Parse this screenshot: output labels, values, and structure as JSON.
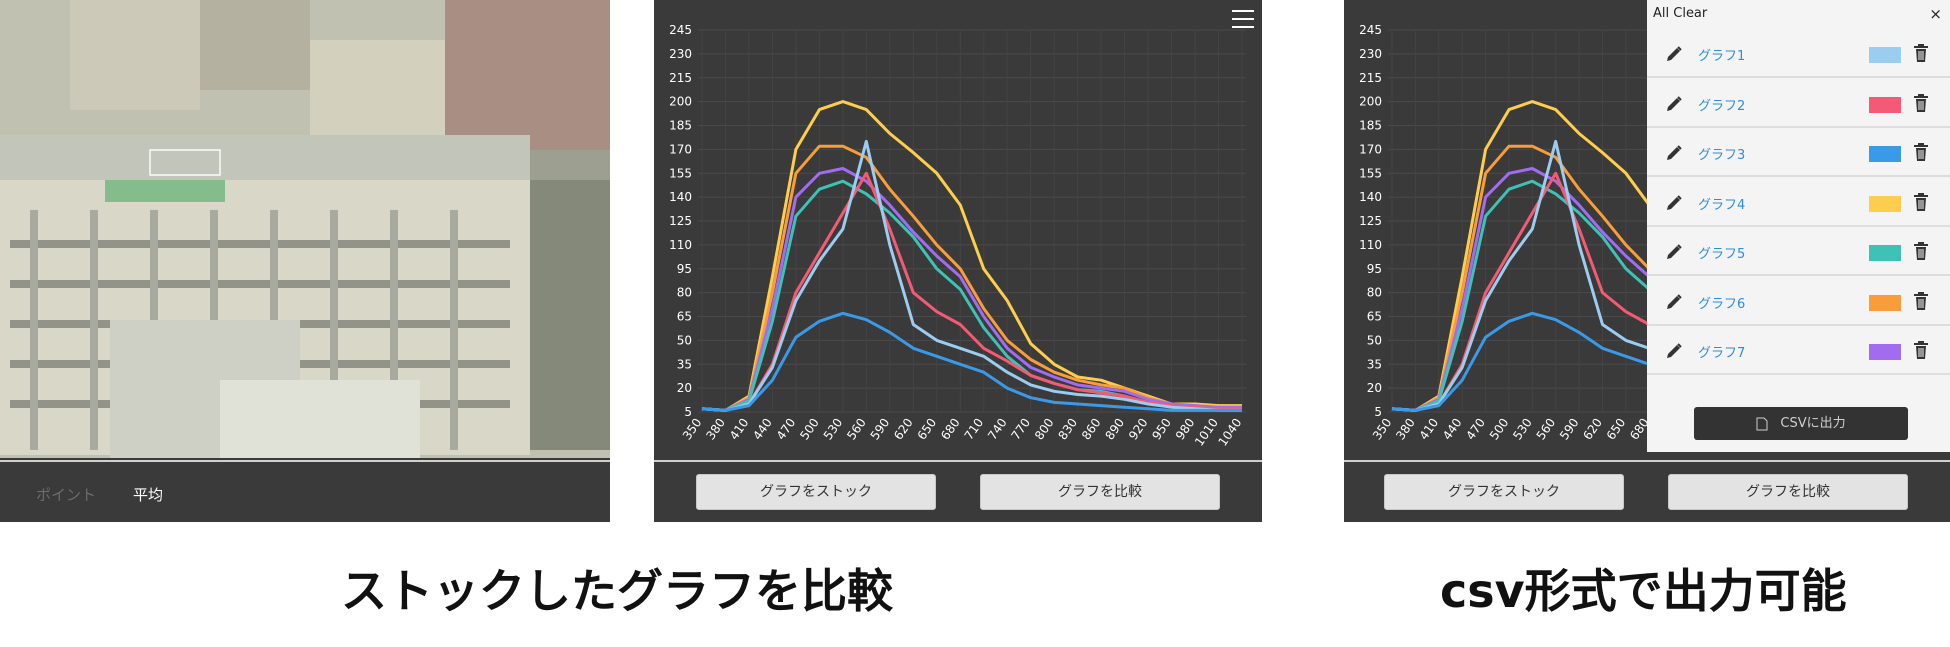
{
  "photo_panel": {
    "tabs": [
      "ポイント",
      "平均"
    ],
    "active_tab": "平均"
  },
  "chart_panel": {
    "stock_button": "グラフをストック",
    "compare_button": "グラフを比較"
  },
  "compare_panel": {
    "stock_button": "グラフをストック",
    "compare_button": "グラフを比較",
    "all_clear": "All Clear",
    "close": "×",
    "items": [
      {
        "name": "グラフ1",
        "color": "#9bcdf0"
      },
      {
        "name": "グラフ2",
        "color": "#f45a73"
      },
      {
        "name": "グラフ3",
        "color": "#3a9ae8"
      },
      {
        "name": "グラフ4",
        "color": "#fdce4e"
      },
      {
        "name": "グラフ5",
        "color": "#3fc2b6"
      },
      {
        "name": "グラフ6",
        "color": "#f99d3b"
      },
      {
        "name": "グラフ7",
        "color": "#a16cf0"
      }
    ],
    "csv_button": "CSVに出力"
  },
  "captions": {
    "left": "ストックしたグラフを比較",
    "right": "csv形式で出力可能"
  },
  "chart_data": {
    "type": "line",
    "x": [
      350,
      380,
      410,
      440,
      470,
      500,
      530,
      560,
      590,
      620,
      650,
      680,
      710,
      740,
      770,
      800,
      830,
      860,
      890,
      920,
      950,
      980,
      1010,
      1040
    ],
    "yticks": [
      5,
      20,
      35,
      50,
      65,
      80,
      95,
      110,
      125,
      140,
      155,
      170,
      185,
      200,
      215,
      230,
      245
    ],
    "ylim": [
      5,
      245
    ],
    "grid": true,
    "series": [
      {
        "color": "#fdce4e",
        "values": [
          7,
          6,
          15,
          90,
          170,
          195,
          200,
          195,
          180,
          168,
          155,
          135,
          95,
          75,
          48,
          35,
          27,
          25,
          20,
          15,
          10,
          10,
          9,
          9
        ]
      },
      {
        "color": "#f99d3b",
        "values": [
          7,
          6,
          14,
          80,
          155,
          172,
          172,
          165,
          145,
          128,
          110,
          95,
          70,
          50,
          38,
          30,
          25,
          22,
          20,
          14,
          10,
          9,
          8,
          8
        ]
      },
      {
        "color": "#a16cf0",
        "values": [
          7,
          6,
          13,
          70,
          140,
          155,
          158,
          150,
          135,
          118,
          103,
          90,
          65,
          45,
          33,
          27,
          22,
          20,
          18,
          13,
          10,
          9,
          8,
          8
        ]
      },
      {
        "color": "#3fc2b6",
        "values": [
          7,
          6,
          12,
          62,
          128,
          145,
          150,
          142,
          130,
          115,
          95,
          82,
          58,
          40,
          28,
          23,
          19,
          18,
          15,
          11,
          9,
          8,
          7,
          7
        ]
      },
      {
        "color": "#f45a73",
        "values": [
          7,
          6,
          10,
          35,
          80,
          105,
          130,
          155,
          120,
          80,
          68,
          60,
          45,
          37,
          28,
          23,
          19,
          17,
          15,
          11,
          9,
          8,
          7,
          7
        ]
      },
      {
        "color": "#9bcdf0",
        "values": [
          7,
          6,
          10,
          33,
          75,
          100,
          120,
          175,
          110,
          60,
          50,
          45,
          40,
          30,
          22,
          18,
          16,
          15,
          13,
          10,
          8,
          7,
          6,
          6
        ]
      },
      {
        "color": "#3a9ae8",
        "values": [
          7,
          6,
          9,
          25,
          52,
          62,
          67,
          63,
          55,
          45,
          40,
          35,
          30,
          20,
          14,
          11,
          10,
          9,
          8,
          7,
          6,
          6,
          6,
          6
        ]
      }
    ]
  }
}
